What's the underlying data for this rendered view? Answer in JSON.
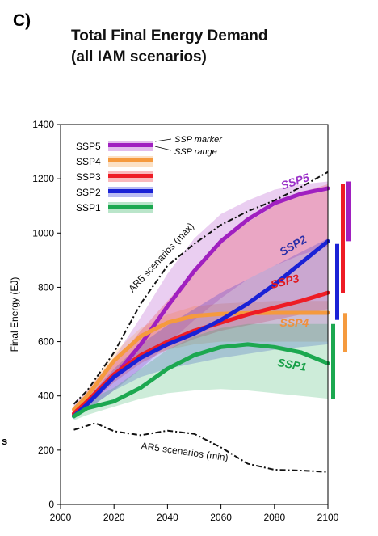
{
  "figure": {
    "panel_label": "C)",
    "title_line1": "Total Final Energy Demand",
    "title_line2": "(all IAM scenarios)",
    "stray_text": "s"
  },
  "chart_data": {
    "type": "line",
    "title": "Total Final Energy Demand (all IAM scenarios)",
    "xlabel": "",
    "ylabel": "Final Energy (EJ)",
    "xlim": [
      2000,
      2100
    ],
    "ylim": [
      0,
      1400
    ],
    "x_ticks": [
      2000,
      2020,
      2040,
      2060,
      2080,
      2100
    ],
    "y_ticks": [
      0,
      200,
      400,
      600,
      800,
      1000,
      1200,
      1400
    ],
    "grid": false,
    "legend_position": "top-left",
    "legend": {
      "entries": [
        "SSP5",
        "SSP4",
        "SSP3",
        "SSP2",
        "SSP1"
      ],
      "marker_note": "SSP marker",
      "range_note": "SSP range"
    },
    "series": [
      {
        "name": "SSP5",
        "color": "#a020c0",
        "label_color": "#9b30c8",
        "x": [
          2005,
          2010,
          2020,
          2030,
          2040,
          2050,
          2060,
          2070,
          2080,
          2090,
          2100
        ],
        "y": [
          330,
          370,
          470,
          590,
          730,
          860,
          970,
          1050,
          1110,
          1145,
          1165
        ],
        "range_low": [
          320,
          350,
          420,
          500,
          590,
          680,
          760,
          830,
          880,
          920,
          950
        ],
        "range_high": [
          370,
          420,
          540,
          690,
          850,
          980,
          1070,
          1120,
          1160,
          1180,
          1190
        ],
        "bar": [
          970,
          1190
        ]
      },
      {
        "name": "SSP4",
        "color": "#f59a3e",
        "label_color": "#f0903a",
        "x": [
          2005,
          2010,
          2020,
          2030,
          2040,
          2050,
          2060,
          2070,
          2080,
          2090,
          2100
        ],
        "y": [
          350,
          400,
          530,
          620,
          670,
          695,
          702,
          705,
          706,
          706,
          706
        ],
        "range_low": [
          340,
          380,
          470,
          540,
          570,
          590,
          600,
          600,
          600,
          600,
          600
        ],
        "range_high": [
          360,
          420,
          560,
          650,
          700,
          730,
          740,
          745,
          750,
          750,
          750
        ],
        "bar": [
          560,
          705
        ]
      },
      {
        "name": "SSP3",
        "color": "#ee1c25",
        "label_color": "#e0191f",
        "x": [
          2005,
          2010,
          2020,
          2030,
          2040,
          2050,
          2060,
          2070,
          2080,
          2090,
          2100
        ],
        "y": [
          335,
          380,
          480,
          550,
          600,
          640,
          670,
          700,
          725,
          750,
          780
        ],
        "range_low": [
          320,
          360,
          450,
          520,
          570,
          610,
          640,
          660,
          680,
          700,
          720
        ],
        "range_high": [
          350,
          400,
          520,
          640,
          750,
          860,
          960,
          1040,
          1100,
          1150,
          1180
        ],
        "bar": [
          780,
          1180
        ]
      },
      {
        "name": "SSP2",
        "color": "#1a22d6",
        "label_color": "#2b2fa8",
        "x": [
          2005,
          2010,
          2020,
          2030,
          2040,
          2050,
          2060,
          2070,
          2080,
          2090,
          2100
        ],
        "y": [
          325,
          370,
          470,
          540,
          590,
          630,
          680,
          740,
          810,
          890,
          970
        ],
        "range_low": [
          315,
          350,
          420,
          470,
          500,
          520,
          540,
          555,
          570,
          580,
          590
        ],
        "range_high": [
          340,
          390,
          500,
          590,
          660,
          720,
          780,
          830,
          880,
          930,
          980
        ],
        "bar": [
          680,
          960
        ]
      },
      {
        "name": "SSP1",
        "color": "#1ca850",
        "label_color": "#18a048",
        "x": [
          2005,
          2010,
          2020,
          2030,
          2040,
          2050,
          2060,
          2070,
          2080,
          2090,
          2100
        ],
        "y": [
          325,
          355,
          380,
          430,
          500,
          550,
          580,
          590,
          580,
          560,
          520
        ],
        "range_low": [
          310,
          330,
          360,
          390,
          410,
          420,
          425,
          420,
          410,
          400,
          390
        ],
        "range_high": [
          340,
          380,
          430,
          500,
          570,
          620,
          650,
          665,
          665,
          665,
          665
        ],
        "bar": [
          390,
          665
        ]
      }
    ],
    "reference_series": [
      {
        "name": "AR5 scenarios (max)",
        "x": [
          2005,
          2010,
          2020,
          2030,
          2040,
          2050,
          2060,
          2070,
          2080,
          2090,
          2100
        ],
        "y": [
          370,
          420,
          560,
          740,
          880,
          960,
          1030,
          1080,
          1120,
          1170,
          1225
        ]
      },
      {
        "name": "AR5 scenarios (min)",
        "x": [
          2005,
          2010,
          2013,
          2020,
          2030,
          2040,
          2050,
          2060,
          2070,
          2080,
          2090,
          2100
        ],
        "y": [
          275,
          290,
          300,
          270,
          255,
          272,
          260,
          210,
          150,
          128,
          125,
          120
        ]
      }
    ]
  }
}
